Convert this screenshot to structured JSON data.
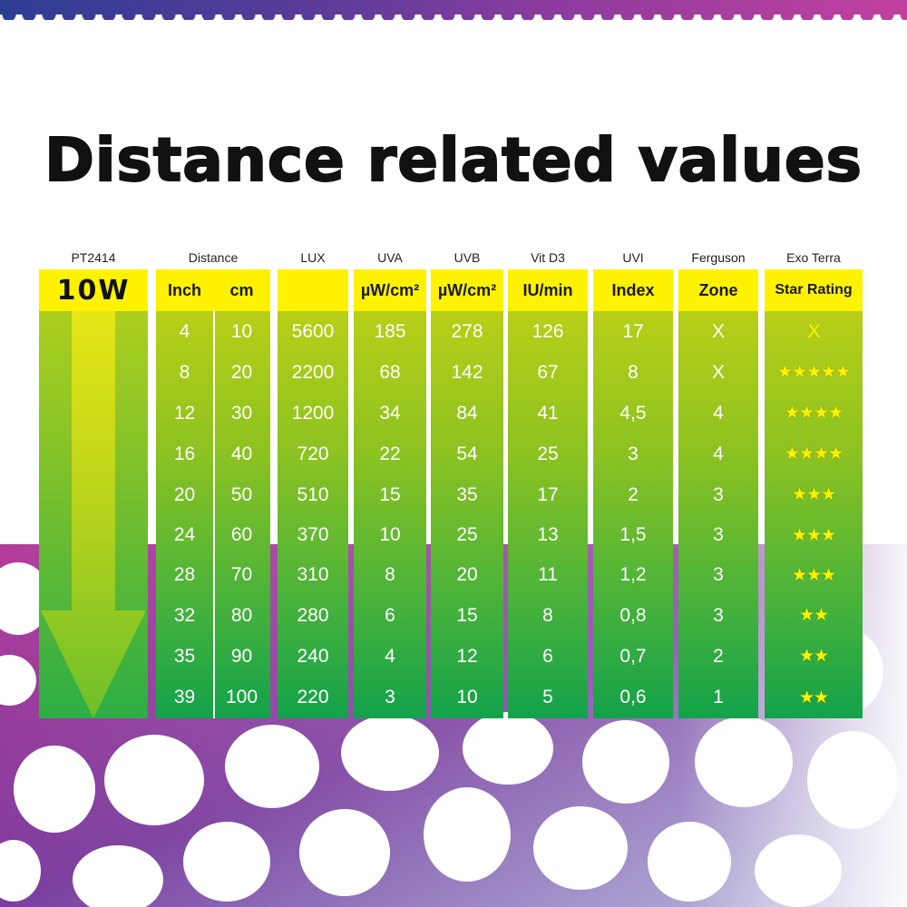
{
  "title": "Distance related values",
  "model": "PT2414",
  "wattage": "10W",
  "column_labels": [
    "PT2414",
    "Distance",
    "LUX",
    "UVA",
    "UVB",
    "Vit D3",
    "UVI",
    "Ferguson",
    "Exo Terra"
  ],
  "headers": {
    "inch": "Inch",
    "cm": "cm",
    "lux": "",
    "uva": "µW/cm²",
    "uvb": "µW/cm²",
    "vitd3": "IU/min",
    "uvi": "Index",
    "ferguson": "Zone",
    "exoterra": "Star Rating"
  },
  "rows": [
    {
      "inch": "4",
      "cm": "10",
      "lux": "5600",
      "uva": "185",
      "uvb": "278",
      "vitd3": "126",
      "uvi": "17",
      "ferguson": "X",
      "exoterra": "X"
    },
    {
      "inch": "8",
      "cm": "20",
      "lux": "2200",
      "uva": "68",
      "uvb": "142",
      "vitd3": "67",
      "uvi": "8",
      "ferguson": "X",
      "exoterra": "★★★★★"
    },
    {
      "inch": "12",
      "cm": "30",
      "lux": "1200",
      "uva": "34",
      "uvb": "84",
      "vitd3": "41",
      "uvi": "4,5",
      "ferguson": "4",
      "exoterra": "★★★★"
    },
    {
      "inch": "16",
      "cm": "40",
      "lux": "720",
      "uva": "22",
      "uvb": "54",
      "vitd3": "25",
      "uvi": "3",
      "ferguson": "4",
      "exoterra": "★★★★"
    },
    {
      "inch": "20",
      "cm": "50",
      "lux": "510",
      "uva": "15",
      "uvb": "35",
      "vitd3": "17",
      "uvi": "2",
      "ferguson": "3",
      "exoterra": "★★★"
    },
    {
      "inch": "24",
      "cm": "60",
      "lux": "370",
      "uva": "10",
      "uvb": "25",
      "vitd3": "13",
      "uvi": "1,5",
      "ferguson": "3",
      "exoterra": "★★★"
    },
    {
      "inch": "28",
      "cm": "70",
      "lux": "310",
      "uva": "8",
      "uvb": "20",
      "vitd3": "11",
      "uvi": "1,2",
      "ferguson": "3",
      "exoterra": "★★★"
    },
    {
      "inch": "32",
      "cm": "80",
      "lux": "280",
      "uva": "6",
      "uvb": "15",
      "vitd3": "8",
      "uvi": "0,8",
      "ferguson": "3",
      "exoterra": "★★"
    },
    {
      "inch": "35",
      "cm": "90",
      "lux": "240",
      "uva": "4",
      "uvb": "12",
      "vitd3": "6",
      "uvi": "0,7",
      "ferguson": "2",
      "exoterra": "★★"
    },
    {
      "inch": "39",
      "cm": "100",
      "lux": "220",
      "uva": "3",
      "uvb": "10",
      "vitd3": "5",
      "uvi": "0,6",
      "ferguson": "1",
      "exoterra": "★★"
    }
  ],
  "colors": {
    "header_yellow": "#fff200",
    "green_top": "#b8cf17",
    "green_bottom": "#13a24a",
    "star": "#fff200",
    "band_purple": "#8a3c9e"
  }
}
